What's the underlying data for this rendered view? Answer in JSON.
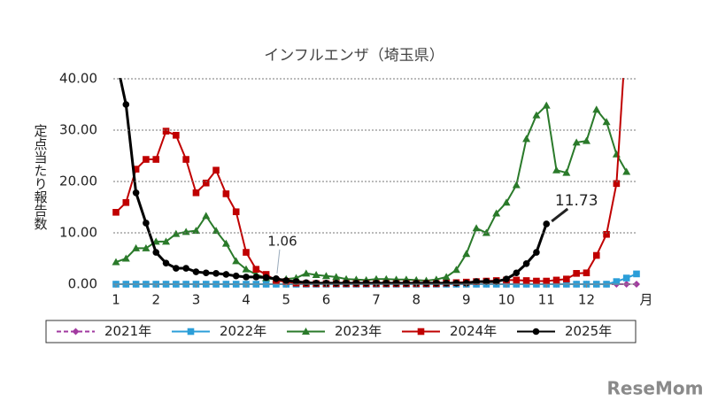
{
  "chart_data": {
    "type": "line",
    "title": "インフルエンザ（埼玉県）",
    "y_label": "定点当たり報告数",
    "x_label": "月",
    "watermark": "ReseMom",
    "xlim": [
      1,
      53
    ],
    "xticks": [
      {
        "value": 1,
        "label": "1"
      },
      {
        "value": 5,
        "label": "2"
      },
      {
        "value": 9,
        "label": "3"
      },
      {
        "value": 14,
        "label": "4"
      },
      {
        "value": 18,
        "label": "5"
      },
      {
        "value": 22,
        "label": "6"
      },
      {
        "value": 27,
        "label": "7"
      },
      {
        "value": 31,
        "label": "8"
      },
      {
        "value": 36,
        "label": "9"
      },
      {
        "value": 40,
        "label": "10"
      },
      {
        "value": 44,
        "label": "11"
      },
      {
        "value": 48,
        "label": "12"
      }
    ],
    "ylim": [
      0,
      40
    ],
    "yticks": [
      {
        "value": 0,
        "label": "0.00"
      },
      {
        "value": 10,
        "label": "10.00"
      },
      {
        "value": 20,
        "label": "20.00"
      },
      {
        "value": 30,
        "label": "30.00"
      },
      {
        "value": 40,
        "label": "40.00"
      }
    ],
    "grid": true,
    "x": [
      1,
      2,
      3,
      4,
      5,
      6,
      7,
      8,
      9,
      10,
      11,
      12,
      13,
      14,
      15,
      16,
      17,
      18,
      19,
      20,
      21,
      22,
      23,
      24,
      25,
      26,
      27,
      28,
      29,
      30,
      31,
      32,
      33,
      34,
      35,
      36,
      37,
      38,
      39,
      40,
      41,
      42,
      43,
      44,
      45,
      46,
      47,
      48,
      49,
      50,
      51,
      52,
      53
    ],
    "series": [
      {
        "name": "2021年",
        "color": "#a23aa0",
        "marker": "diamond",
        "dashed": true,
        "values": [
          0,
          0,
          0,
          0,
          0,
          0,
          0,
          0,
          0,
          0,
          0,
          0,
          0,
          0,
          0,
          0,
          0,
          0,
          0,
          0,
          0,
          0,
          0,
          0,
          0,
          0,
          0,
          0,
          0,
          0,
          0,
          0,
          0,
          0,
          0,
          0,
          0,
          0,
          0,
          0,
          0,
          0,
          0,
          0,
          0,
          0,
          0,
          0,
          0,
          0,
          0,
          0,
          0
        ]
      },
      {
        "name": "2022年",
        "color": "#2b9ed8",
        "marker": "square",
        "values": [
          0,
          0,
          0,
          0,
          0,
          0,
          0,
          0,
          0,
          0,
          0,
          0,
          0,
          0,
          0,
          0,
          0,
          0,
          0,
          0,
          0,
          0,
          0,
          0,
          0,
          0,
          0,
          0,
          0,
          0,
          0,
          0,
          0,
          0,
          0,
          0,
          0,
          0,
          0,
          0,
          0,
          0,
          0,
          0,
          0,
          0,
          0,
          0,
          0,
          0,
          0.5,
          1.2,
          2.0
        ]
      },
      {
        "name": "2023年",
        "color": "#2a7a2a",
        "marker": "triangle",
        "values": [
          4.3,
          5.0,
          7.0,
          7.0,
          8.3,
          8.3,
          9.8,
          10.2,
          10.4,
          13.3,
          10.4,
          7.9,
          4.5,
          2.9,
          1.9,
          1.2,
          0.9,
          1.0,
          1.2,
          2.1,
          1.8,
          1.6,
          1.4,
          1.0,
          0.9,
          0.8,
          1.0,
          1.0,
          0.9,
          0.9,
          0.8,
          0.7,
          0.9,
          1.4,
          2.8,
          5.9,
          10.9,
          10.0,
          13.8,
          15.9,
          19.3,
          28.3,
          32.9,
          34.8,
          22.2,
          21.7,
          27.6,
          27.9,
          34.0,
          31.6,
          25.3,
          21.9,
          null
        ]
      },
      {
        "name": "2024年",
        "color": "#c00000",
        "marker": "square",
        "values": [
          14.0,
          15.9,
          22.4,
          24.3,
          24.3,
          29.8,
          29.0,
          24.3,
          17.8,
          19.7,
          22.2,
          17.6,
          14.1,
          6.2,
          2.9,
          1.9,
          0.7,
          0.5,
          0.2,
          0.1,
          0.1,
          0.1,
          0.1,
          0.1,
          0.1,
          0.1,
          0.1,
          0.1,
          0.1,
          0.1,
          0.1,
          0.1,
          0.1,
          0.2,
          0.3,
          0.4,
          0.5,
          0.6,
          0.7,
          0.8,
          0.8,
          0.7,
          0.6,
          0.6,
          0.8,
          1.0,
          2.1,
          2.2,
          5.6,
          9.7,
          19.6,
          50,
          null
        ]
      },
      {
        "name": "2025年",
        "color": "#000000",
        "marker": "circle",
        "values": [
          44,
          35.0,
          17.8,
          11.9,
          6.2,
          4.1,
          3.1,
          3.1,
          2.4,
          2.2,
          2.1,
          1.9,
          1.6,
          1.4,
          1.4,
          1.3,
          1.06,
          0.7,
          0.5,
          0.3,
          0.2,
          0.2,
          0.2,
          0.2,
          0.2,
          0.2,
          0.2,
          0.2,
          0.2,
          0.2,
          0.2,
          0.2,
          0.2,
          0.2,
          0.2,
          0.2,
          0.5,
          0.5,
          0.5,
          1.0,
          2.2,
          4.0,
          6.2,
          11.73,
          null,
          null,
          null,
          null,
          null,
          null,
          null,
          null,
          null
        ]
      }
    ],
    "annotations": [
      {
        "label": "1.06"
      },
      {
        "label": "11.73"
      }
    ]
  }
}
